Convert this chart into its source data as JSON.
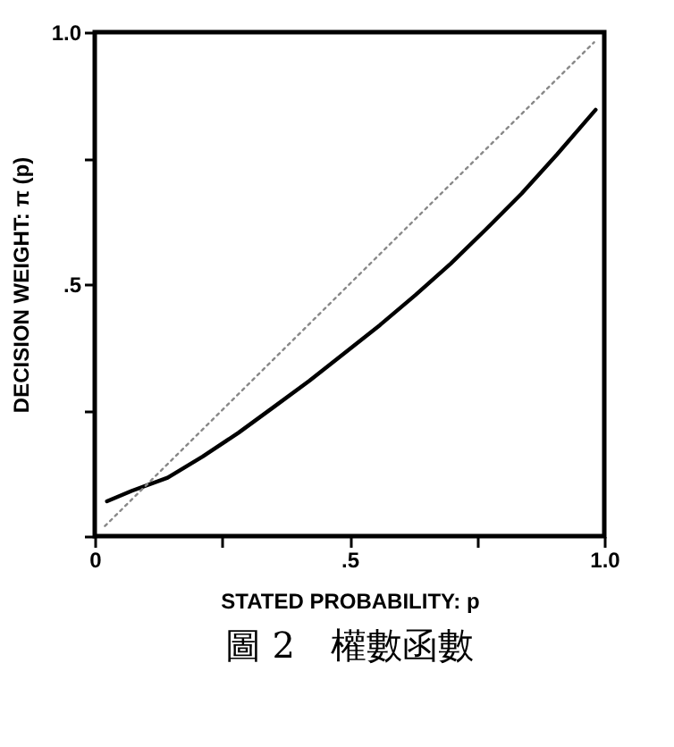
{
  "chart_data": {
    "type": "line",
    "xlabel": "STATED PROBABILITY: p",
    "ylabel": "DECISION WEIGHT: π (p)",
    "xlim": [
      0,
      1
    ],
    "ylim": [
      0,
      1
    ],
    "xticks": [
      0,
      {
        "value": 0.25,
        "label": null
      },
      {
        "value": 0.5,
        "label": ".5"
      },
      {
        "value": 0.75,
        "label": null
      },
      {
        "value": 1,
        "label": "1.0"
      }
    ],
    "yticks": [
      {
        "value": 0,
        "label": null
      },
      {
        "value": 0.25,
        "label": null
      },
      {
        "value": 0.5,
        "label": ".5"
      },
      {
        "value": 0.75,
        "label": null
      },
      {
        "value": 1,
        "label": "1.0"
      }
    ],
    "grid": false,
    "series": [
      {
        "color": "#000000",
        "line_style": "solid",
        "x": [
          0.024,
          0.073,
          0.143,
          0.212,
          0.282,
          0.351,
          0.421,
          0.49,
          0.56,
          0.629,
          0.699,
          0.768,
          0.838,
          0.907,
          0.983
        ],
        "values": [
          0.069,
          0.09,
          0.116,
          0.158,
          0.205,
          0.256,
          0.308,
          0.363,
          0.419,
          0.478,
          0.541,
          0.609,
          0.68,
          0.757,
          0.846
        ]
      },
      {
        "color": "#888888",
        "line_style": "dotted",
        "x": [
          0.02,
          0.98
        ],
        "values": [
          0.02,
          0.98
        ]
      }
    ],
    "annotations": [
      "圖 2　權數函數"
    ]
  }
}
